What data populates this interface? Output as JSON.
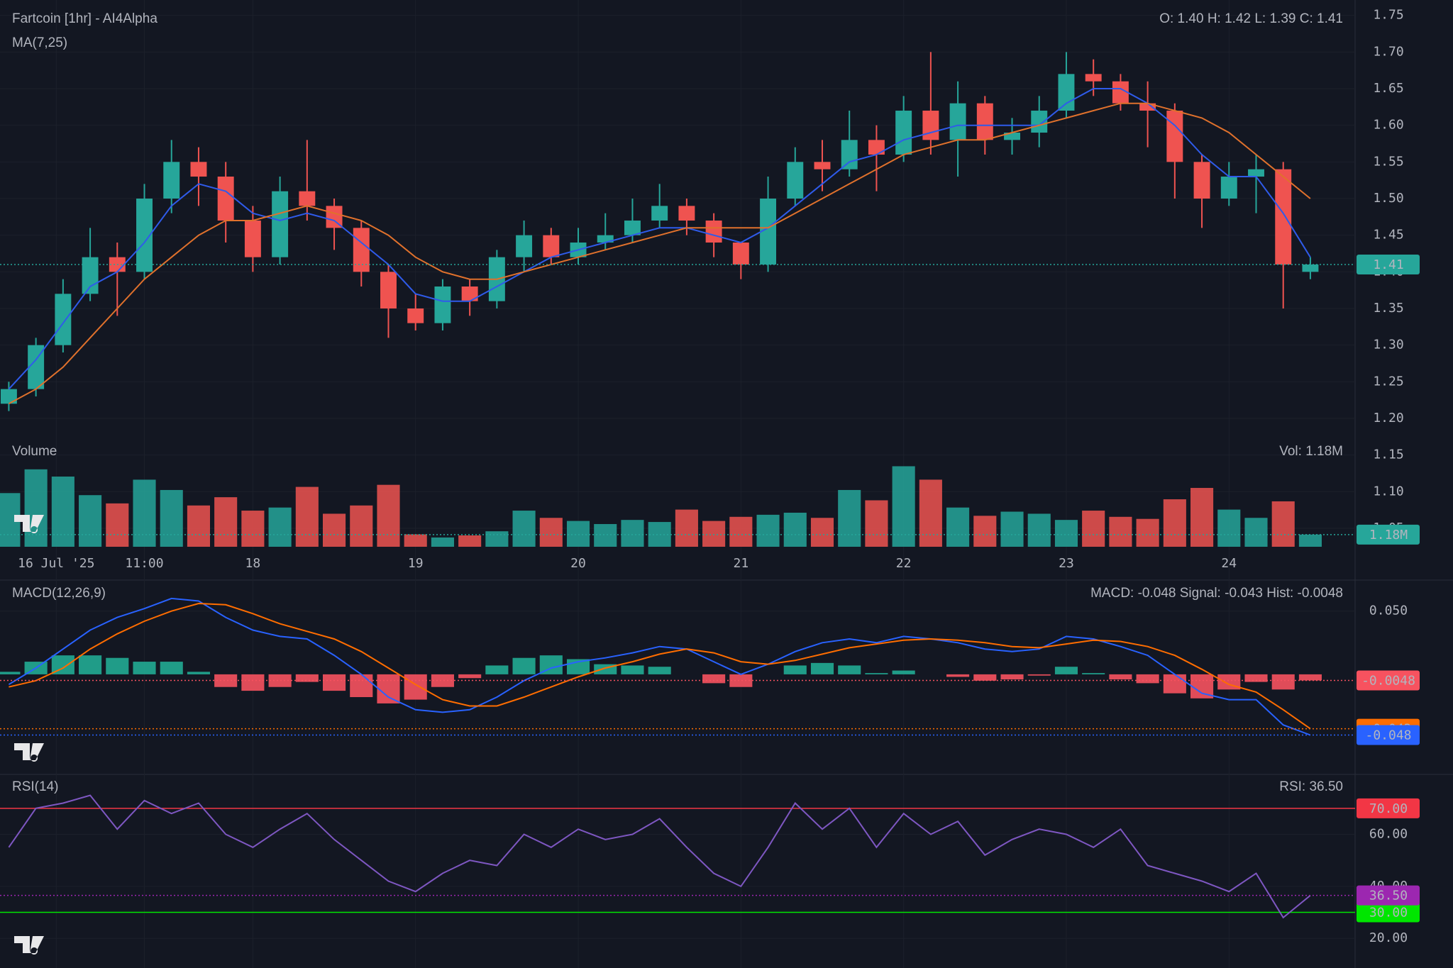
{
  "chart_data": [
    {
      "type": "candlestick",
      "title": "Fartcoin  [1hr] - AI4Alpha",
      "indicator_label": "MA(7,25)",
      "ohlc_label": "O: 1.40 H: 1.42 L: 1.39 C: 1.41",
      "x": [
        12,
        16,
        20,
        24,
        28,
        32,
        36,
        40,
        44,
        48,
        52,
        56,
        60,
        64,
        68,
        72,
        76,
        80,
        84,
        88,
        92,
        96,
        100,
        104,
        108,
        112,
        116,
        120,
        124,
        128,
        132,
        136,
        140,
        144,
        148,
        152,
        156,
        160,
        164,
        168,
        172,
        176,
        180,
        184,
        188,
        192,
        196,
        200,
        204
      ],
      "open": [
        1.22,
        1.24,
        1.3,
        1.37,
        1.42,
        1.4,
        1.5,
        1.55,
        1.53,
        1.47,
        1.42,
        1.51,
        1.49,
        1.46,
        1.4,
        1.35,
        1.33,
        1.38,
        1.36,
        1.42,
        1.45,
        1.42,
        1.44,
        1.45,
        1.47,
        1.49,
        1.47,
        1.44,
        1.41,
        1.5,
        1.55,
        1.54,
        1.58,
        1.56,
        1.62,
        1.58,
        1.63,
        1.58,
        1.59,
        1.62,
        1.67,
        1.66,
        1.63,
        1.62,
        1.55,
        1.5,
        1.53,
        1.54,
        1.4
      ],
      "high": [
        1.25,
        1.31,
        1.39,
        1.46,
        1.44,
        1.52,
        1.58,
        1.57,
        1.55,
        1.49,
        1.53,
        1.58,
        1.5,
        1.47,
        1.41,
        1.37,
        1.39,
        1.39,
        1.43,
        1.47,
        1.46,
        1.46,
        1.48,
        1.5,
        1.52,
        1.5,
        1.48,
        1.44,
        1.53,
        1.57,
        1.58,
        1.62,
        1.6,
        1.64,
        1.7,
        1.66,
        1.64,
        1.61,
        1.64,
        1.7,
        1.69,
        1.67,
        1.66,
        1.63,
        1.56,
        1.55,
        1.56,
        1.55,
        1.42
      ],
      "low": [
        1.21,
        1.23,
        1.29,
        1.36,
        1.34,
        1.39,
        1.48,
        1.49,
        1.44,
        1.4,
        1.41,
        1.47,
        1.43,
        1.38,
        1.31,
        1.32,
        1.32,
        1.34,
        1.35,
        1.4,
        1.41,
        1.41,
        1.43,
        1.44,
        1.46,
        1.45,
        1.42,
        1.39,
        1.4,
        1.49,
        1.51,
        1.53,
        1.51,
        1.55,
        1.56,
        1.53,
        1.56,
        1.56,
        1.57,
        1.61,
        1.64,
        1.62,
        1.57,
        1.5,
        1.46,
        1.49,
        1.48,
        1.35,
        1.39
      ],
      "close": [
        1.24,
        1.3,
        1.37,
        1.42,
        1.4,
        1.5,
        1.55,
        1.53,
        1.47,
        1.42,
        1.51,
        1.49,
        1.46,
        1.4,
        1.35,
        1.33,
        1.38,
        1.36,
        1.42,
        1.45,
        1.42,
        1.44,
        1.45,
        1.47,
        1.49,
        1.47,
        1.44,
        1.41,
        1.5,
        1.55,
        1.54,
        1.58,
        1.56,
        1.62,
        1.58,
        1.63,
        1.58,
        1.59,
        1.62,
        1.67,
        1.66,
        1.63,
        1.62,
        1.55,
        1.5,
        1.53,
        1.54,
        1.41,
        1.41
      ],
      "up_color": "#26a69a",
      "down_color": "#ef5350",
      "ma_lines": [
        {
          "color": "#2f5bea",
          "values": [
            1.24,
            1.28,
            1.33,
            1.38,
            1.4,
            1.44,
            1.49,
            1.52,
            1.51,
            1.48,
            1.47,
            1.48,
            1.47,
            1.44,
            1.41,
            1.37,
            1.36,
            1.36,
            1.38,
            1.4,
            1.42,
            1.43,
            1.44,
            1.45,
            1.46,
            1.46,
            1.45,
            1.44,
            1.46,
            1.49,
            1.52,
            1.55,
            1.56,
            1.58,
            1.59,
            1.6,
            1.6,
            1.6,
            1.6,
            1.63,
            1.65,
            1.65,
            1.63,
            1.6,
            1.56,
            1.53,
            1.53,
            1.48,
            1.42
          ]
        },
        {
          "color": "#e0712c",
          "values": [
            1.22,
            1.24,
            1.27,
            1.31,
            1.35,
            1.39,
            1.42,
            1.45,
            1.47,
            1.47,
            1.48,
            1.49,
            1.48,
            1.47,
            1.45,
            1.42,
            1.4,
            1.39,
            1.39,
            1.4,
            1.41,
            1.42,
            1.43,
            1.44,
            1.45,
            1.46,
            1.46,
            1.46,
            1.46,
            1.48,
            1.5,
            1.52,
            1.54,
            1.56,
            1.57,
            1.58,
            1.58,
            1.59,
            1.6,
            1.61,
            1.62,
            1.63,
            1.63,
            1.62,
            1.61,
            1.59,
            1.56,
            1.53,
            1.5
          ]
        }
      ],
      "price_marker": {
        "value": 1.41,
        "label": "1.41",
        "color": "#26a69a"
      },
      "xlim": [
        10.7,
        210.6
      ],
      "ylim": [
        1.019,
        1.771
      ],
      "xticks": [
        {
          "value": 19,
          "label": "16 Jul '25"
        },
        {
          "value": 32,
          "label": "11:00"
        },
        {
          "value": 48,
          "label": "18"
        },
        {
          "value": 72,
          "label": "19"
        },
        {
          "value": 96,
          "label": "20"
        },
        {
          "value": 120,
          "label": "21"
        },
        {
          "value": 144,
          "label": "22"
        },
        {
          "value": 168,
          "label": "23"
        },
        {
          "value": 192,
          "label": "24"
        }
      ],
      "yticks": [
        {
          "value": 1.05,
          "label": "1.05"
        },
        {
          "value": 1.1,
          "label": "1.10"
        },
        {
          "value": 1.15,
          "label": "1.15"
        },
        {
          "value": 1.2,
          "label": "1.20"
        },
        {
          "value": 1.25,
          "label": "1.25"
        },
        {
          "value": 1.3,
          "label": "1.30"
        },
        {
          "value": 1.35,
          "label": "1.35"
        },
        {
          "value": 1.4,
          "label": "1.40"
        },
        {
          "value": 1.45,
          "label": "1.45"
        },
        {
          "value": 1.5,
          "label": "1.50"
        },
        {
          "value": 1.55,
          "label": "1.55"
        },
        {
          "value": 1.6,
          "label": "1.60"
        },
        {
          "value": 1.65,
          "label": "1.65"
        },
        {
          "value": 1.7,
          "label": "1.70"
        },
        {
          "value": 1.75,
          "label": "1.75"
        }
      ],
      "grid": true,
      "volume": {
        "label": "Volume",
        "readout": "Vol: 1.18M",
        "ylim": [
          0,
          9000000
        ],
        "values": [
          5200000,
          7500000,
          6800000,
          5000000,
          4200000,
          6500000,
          5500000,
          4000000,
          4800000,
          3500000,
          3800000,
          5800000,
          3200000,
          4000000,
          6000000,
          1200000,
          900000,
          1100000,
          1500000,
          3500000,
          2800000,
          2500000,
          2200000,
          2600000,
          2400000,
          3600000,
          2500000,
          2900000,
          3100000,
          3300000,
          2800000,
          5500000,
          4500000,
          7800000,
          6500000,
          3800000,
          3000000,
          3400000,
          3200000,
          2600000,
          3500000,
          2900000,
          2700000,
          4600000,
          5700000,
          3600000,
          2800000,
          4400000,
          1180000
        ],
        "marker": {
          "value": 1180000,
          "label": "1.18M",
          "color": "#26a69a"
        }
      }
    },
    {
      "type": "macd",
      "title": "MACD(12,26,9)",
      "readout": "MACD: -0.048 Signal: -0.043 Hist: -0.0048",
      "ylim": [
        -0.078,
        0.0734
      ],
      "yticks": [
        {
          "value": 0.05,
          "label": "0.050"
        }
      ],
      "macd": {
        "color": "#2962ff",
        "values": [
          -0.008,
          0.005,
          0.02,
          0.035,
          0.045,
          0.052,
          0.06,
          0.058,
          0.045,
          0.035,
          0.03,
          0.028,
          0.015,
          0.0,
          -0.018,
          -0.028,
          -0.03,
          -0.028,
          -0.018,
          -0.005,
          0.005,
          0.01,
          0.013,
          0.017,
          0.022,
          0.02,
          0.01,
          0.0,
          0.008,
          0.018,
          0.025,
          0.028,
          0.025,
          0.03,
          0.028,
          0.025,
          0.02,
          0.018,
          0.02,
          0.03,
          0.028,
          0.022,
          0.015,
          0.0,
          -0.015,
          -0.02,
          -0.02,
          -0.04,
          -0.048
        ]
      },
      "signal": {
        "color": "#ff6d00",
        "values": [
          -0.01,
          -0.005,
          0.005,
          0.02,
          0.032,
          0.042,
          0.05,
          0.056,
          0.055,
          0.048,
          0.04,
          0.034,
          0.028,
          0.018,
          0.005,
          -0.008,
          -0.02,
          -0.025,
          -0.025,
          -0.018,
          -0.01,
          -0.002,
          0.005,
          0.01,
          0.016,
          0.02,
          0.017,
          0.01,
          0.008,
          0.011,
          0.016,
          0.021,
          0.024,
          0.027,
          0.028,
          0.027,
          0.025,
          0.022,
          0.021,
          0.024,
          0.027,
          0.026,
          0.022,
          0.015,
          0.004,
          -0.008,
          -0.014,
          -0.028,
          -0.043
        ]
      },
      "histogram": {
        "up_color": "#22ab94",
        "down_color": "#f7525f",
        "values": [
          0.002,
          0.01,
          0.015,
          0.015,
          0.013,
          0.01,
          0.01,
          0.002,
          -0.01,
          -0.013,
          -0.01,
          -0.006,
          -0.013,
          -0.018,
          -0.023,
          -0.02,
          -0.01,
          -0.003,
          0.007,
          0.013,
          0.015,
          0.012,
          0.008,
          0.007,
          0.006,
          0,
          -0.007,
          -0.01,
          0,
          0.007,
          0.009,
          0.007,
          0.001,
          0.003,
          0,
          -0.002,
          -0.005,
          -0.004,
          -0.001,
          0.006,
          0.001,
          -0.004,
          -0.007,
          -0.015,
          -0.019,
          -0.012,
          -0.006,
          -0.012,
          -0.0048
        ]
      },
      "markers": [
        {
          "value": -0.0048,
          "label": "-0.0048",
          "color": "#f7525f"
        },
        {
          "value": -0.043,
          "label": "-0.043",
          "color": "#ff6d00"
        },
        {
          "value": -0.048,
          "label": "-0.048",
          "color": "#2962ff"
        }
      ]
    },
    {
      "type": "rsi",
      "title": "RSI(14)",
      "readout": "RSI: 36.50",
      "color": "#7e57c2",
      "values": [
        55,
        70,
        72,
        75,
        62,
        73,
        68,
        72,
        60,
        55,
        62,
        68,
        58,
        50,
        42,
        38,
        45,
        50,
        48,
        60,
        55,
        62,
        58,
        60,
        66,
        55,
        45,
        40,
        55,
        72,
        62,
        70,
        55,
        68,
        60,
        65,
        52,
        58,
        62,
        60,
        55,
        62,
        48,
        45,
        42,
        38,
        45,
        28,
        36.5
      ],
      "ylim": [
        8.6,
        82.5
      ],
      "yticks": [
        {
          "value": 60,
          "label": "60.00"
        },
        {
          "value": 40,
          "label": "40.00"
        },
        {
          "value": 20,
          "label": "20.00"
        }
      ],
      "bands": [
        {
          "value": 70,
          "label": "70.00",
          "color": "#f23645"
        },
        {
          "value": 30,
          "label": "30.00",
          "color": "#00e600"
        }
      ],
      "marker": {
        "value": 36.5,
        "label": "36.50",
        "color": "#9c27b0"
      }
    }
  ]
}
